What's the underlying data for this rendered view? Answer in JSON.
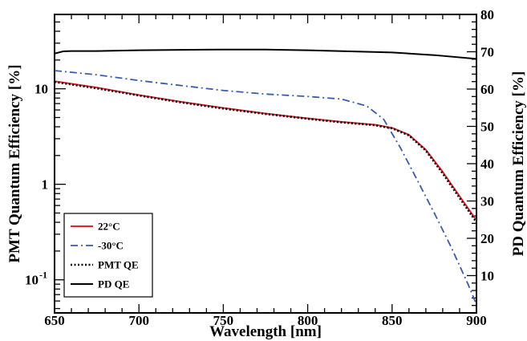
{
  "chart_data": {
    "type": "line",
    "xlabel": "Wavelength [nm]",
    "ylabel_left": "PMT Quantum Efficiency [%]",
    "ylabel_right": "PD Quantum Efficiency [%]",
    "xlim": [
      650,
      900
    ],
    "ylim_left": [
      0.045,
      60
    ],
    "ylim_left_scale": "log",
    "ylim_right": [
      0,
      80
    ],
    "x_ticks": [
      "650",
      "700",
      "750",
      "800",
      "850",
      "900"
    ],
    "y_left_ticks": [
      {
        "value": 0.1,
        "label": "10",
        "exp": "-1"
      },
      {
        "value": 1,
        "label": "1",
        "exp": ""
      },
      {
        "value": 10,
        "label": "10",
        "exp": ""
      }
    ],
    "y_right_ticks": [
      "10",
      "20",
      "30",
      "40",
      "50",
      "60",
      "70",
      "80"
    ],
    "legend_position": "bottom-left",
    "series": [
      {
        "name": "22°C",
        "axis": "left",
        "color": "#e8202a",
        "style": "solid",
        "x": [
          650,
          675,
          700,
          725,
          750,
          775,
          800,
          820,
          840,
          850,
          860,
          870,
          880,
          890,
          900
        ],
        "y": [
          12,
          10.3,
          8.6,
          7.3,
          6.3,
          5.5,
          4.9,
          4.5,
          4.2,
          3.9,
          3.3,
          2.3,
          1.35,
          0.75,
          0.42
        ]
      },
      {
        "name": "-30°C",
        "axis": "left",
        "color": "#3a5ba8",
        "style": "dashdot",
        "x": [
          650,
          675,
          700,
          725,
          750,
          775,
          800,
          820,
          835,
          845,
          855,
          865,
          875,
          885,
          895,
          900
        ],
        "y": [
          15.5,
          14,
          12.2,
          10.8,
          9.6,
          8.8,
          8.3,
          7.8,
          6.6,
          4.8,
          2.4,
          1.1,
          0.5,
          0.22,
          0.09,
          0.055
        ]
      },
      {
        "name": "PMT QE",
        "axis": "left",
        "color": "#000000",
        "style": "dotted",
        "x": [
          650,
          675,
          700,
          725,
          750,
          775,
          800,
          820,
          840,
          850,
          860,
          870,
          880,
          890,
          900
        ],
        "y": [
          11.8,
          10.1,
          8.5,
          7.2,
          6.2,
          5.45,
          4.85,
          4.45,
          4.15,
          3.85,
          3.25,
          2.25,
          1.3,
          0.72,
          0.4
        ]
      },
      {
        "name": "PD QE",
        "axis": "right",
        "color": "#000000",
        "style": "solid",
        "x": [
          650,
          655,
          660,
          675,
          700,
          725,
          750,
          775,
          800,
          825,
          850,
          875,
          900
        ],
        "y": [
          69.5,
          70.1,
          70.2,
          70.2,
          70.4,
          70.5,
          70.6,
          70.6,
          70.4,
          70.1,
          69.8,
          69.1,
          68.1
        ]
      }
    ]
  }
}
